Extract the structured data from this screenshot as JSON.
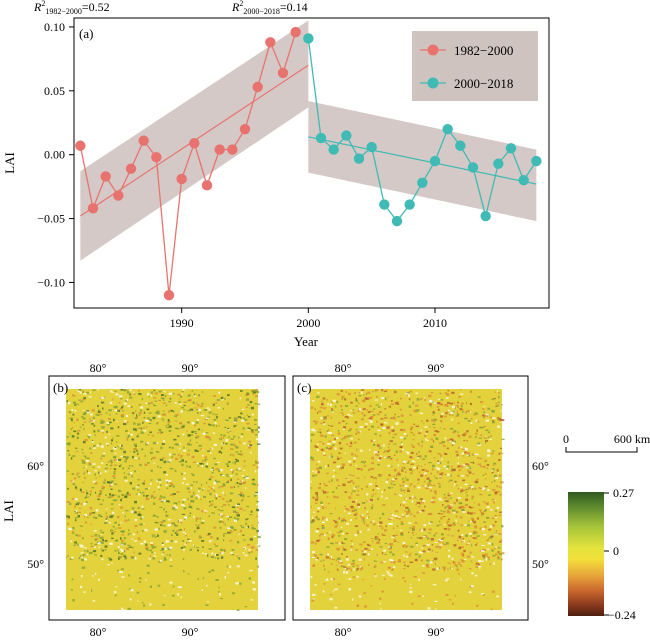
{
  "top": {
    "r2_a": {
      "base": "R",
      "sup": "2",
      "sub": "1982−2000",
      "value": "=0.52"
    },
    "r2_b": {
      "base": "R",
      "sup": "2",
      "sub": "2000−2018",
      "value": "=0.14"
    }
  },
  "panel_a": {
    "label": "(a)"
  },
  "panel_b": {
    "label": "(b)"
  },
  "panel_c": {
    "label": "(c)"
  },
  "maps": {
    "lon_ticks": [
      "80°",
      "90°"
    ],
    "lat_ticks": [
      "60°",
      "50°"
    ],
    "ylabel": "LAI",
    "scalebar": {
      "left": "0",
      "right": "600 km"
    },
    "colorbar": {
      "max": "0.27",
      "mid": "0",
      "min": "−0.24",
      "colors": [
        "#2f5a1e",
        "#5f8b2e",
        "#a7c43a",
        "#dfe23e",
        "#f4e03a",
        "#e7a23a",
        "#c9652c",
        "#8b3a1e",
        "#4d1f10"
      ]
    },
    "colors": {
      "base": "#e3d23c",
      "green": "#7a9e33",
      "darkgreen": "#3f6a20",
      "orange": "#dc8a34",
      "red": "#b9562a",
      "white": "#ffffff"
    }
  },
  "chart_data": {
    "type": "line",
    "xlabel": "Year",
    "ylabel": "LAI",
    "xlim": [
      1981.5,
      2019
    ],
    "ylim": [
      -0.12,
      0.107
    ],
    "xticks": [
      1990,
      2000,
      2010
    ],
    "yticks": [
      0.1,
      0.05,
      0.0,
      -0.05,
      -0.1
    ],
    "ytick_labels": [
      "0.10",
      "0.05",
      "0.00",
      "−0.05",
      "−0.10"
    ],
    "legend_position": "top-right",
    "band_color": "#cfc3c0",
    "series": [
      {
        "name": "1982−2000",
        "color": "#e8736e",
        "x": [
          1982,
          1983,
          1984,
          1985,
          1986,
          1987,
          1988,
          1989,
          1990,
          1991,
          1992,
          1993,
          1994,
          1995,
          1996,
          1997,
          1998,
          1999
        ],
        "values": [
          0.007,
          -0.042,
          -0.017,
          -0.032,
          -0.011,
          0.011,
          -0.002,
          -0.11,
          -0.019,
          0.009,
          -0.024,
          0.004,
          0.004,
          0.02,
          0.053,
          0.088,
          0.064,
          0.096
        ],
        "trend": {
          "x": [
            1982,
            2000
          ],
          "y": [
            -0.048,
            0.07
          ]
        },
        "ci_upper": [
          -0.013,
          0.105
        ],
        "ci_lower": [
          -0.083,
          0.037
        ]
      },
      {
        "name": "2000−2018",
        "color": "#3fbab4",
        "x": [
          2000,
          2001,
          2002,
          2003,
          2004,
          2005,
          2006,
          2007,
          2008,
          2009,
          2010,
          2011,
          2012,
          2013,
          2014,
          2015,
          2016,
          2017,
          2018
        ],
        "values": [
          0.091,
          0.013,
          0.004,
          0.015,
          -0.003,
          0.006,
          -0.039,
          -0.052,
          -0.039,
          -0.022,
          -0.005,
          0.02,
          0.007,
          -0.01,
          -0.048,
          -0.007,
          0.005,
          -0.02,
          -0.005
        ],
        "trend": {
          "x": [
            2000,
            2018
          ],
          "y": [
            0.014,
            -0.023
          ]
        },
        "ci_upper": [
          0.042,
          0.004
        ],
        "ci_lower": [
          -0.014,
          -0.052
        ]
      }
    ]
  }
}
